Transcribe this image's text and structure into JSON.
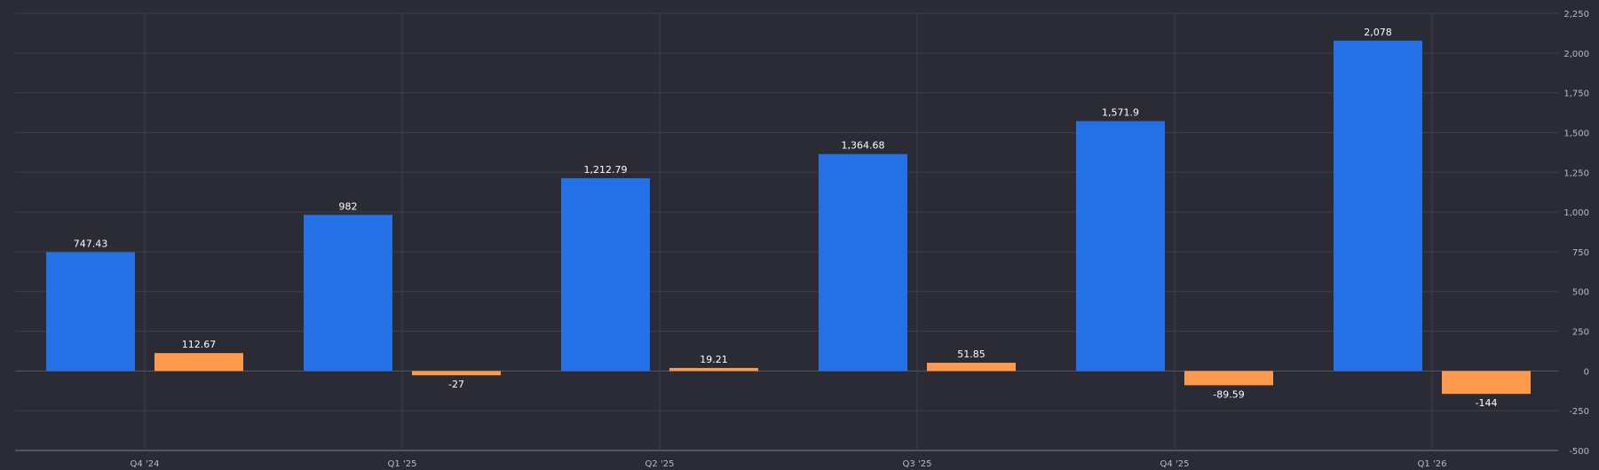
{
  "chart_data": {
    "type": "bar",
    "categories": [
      "Q4 '24",
      "Q1 '25",
      "Q2 '25",
      "Q3 '25",
      "Q4 '25",
      "Q1 '26"
    ],
    "series": [
      {
        "color": "#2470e6",
        "values": [
          747.43,
          982,
          1212.79,
          1364.68,
          1571.9,
          2078
        ]
      },
      {
        "color": "#ff9a4d",
        "values": [
          112.67,
          -27,
          19.21,
          51.85,
          -89.59,
          -144
        ]
      }
    ],
    "value_labels": [
      [
        "747.43",
        "982",
        "1,212.79",
        "1,364.68",
        "1,571.9",
        "2,078"
      ],
      [
        "112.67",
        "-27",
        "19.21",
        "51.85",
        "-89.59",
        "-144"
      ]
    ],
    "y_ticks": [
      2250,
      2000,
      1750,
      1500,
      1250,
      1000,
      750,
      500,
      250,
      0,
      -250,
      -500
    ],
    "y_tick_labels": [
      "2,250",
      "2,000",
      "1,750",
      "1,500",
      "1,250",
      "1,000",
      "750",
      "500",
      "250",
      "0",
      "-250",
      "-500"
    ],
    "ylim": [
      -500,
      2250
    ],
    "grid": true,
    "axis_position": "right",
    "background": "#2a2b34"
  }
}
